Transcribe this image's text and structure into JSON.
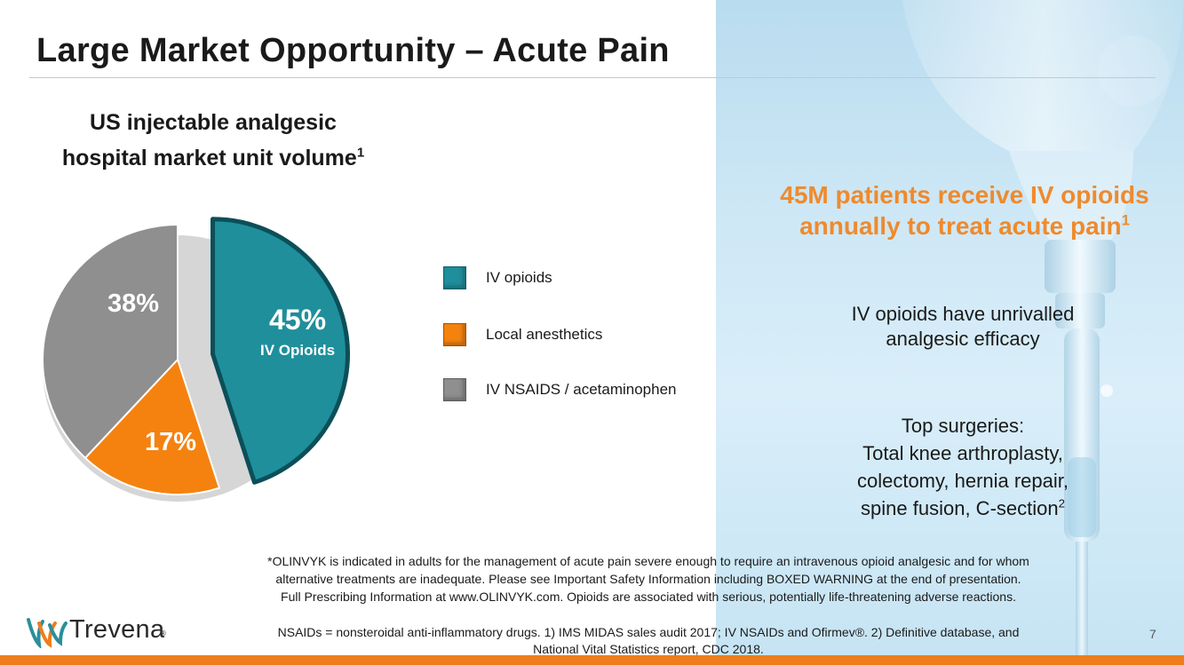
{
  "slide": {
    "title": "Large Market Opportunity – Acute Pain",
    "page_number": "7"
  },
  "chart_data": {
    "type": "pie",
    "title": "US injectable analgesic hospital market unit volume",
    "title_line1": "US injectable analgesic",
    "title_line2": "hospital market unit volume",
    "title_footnote": "1",
    "slices": [
      {
        "label": "IV opioids",
        "value": 45,
        "display": "45%",
        "sublabel": "IV Opioids",
        "color": "#1f8f9c",
        "exploded": true
      },
      {
        "label": "Local anesthetics",
        "value": 17,
        "display": "17%",
        "color": "#f5820f",
        "exploded": false
      },
      {
        "label": "IV NSAIDS / acetaminophen",
        "value": 38,
        "display": "38%",
        "color": "#8f8f8f",
        "exploded": false
      }
    ],
    "legend_position": "right"
  },
  "callout": {
    "line1": "45M patients receive IV opioids",
    "line2": "annually to treat acute pain",
    "footnote": "1"
  },
  "efficacy": {
    "line1": "IV opioids have unrivalled",
    "line2": "analgesic efficacy"
  },
  "surgeries": {
    "line1": "Top surgeries:",
    "line2": "Total knee arthroplasty,",
    "line3": "colectomy, hernia repair,",
    "line4": "spine fusion, C-section",
    "footnote": "2"
  },
  "footnote": {
    "line1": "*OLINVYK is indicated in adults for the management of acute pain severe enough to require an intravenous opioid analgesic and for whom",
    "line2": "alternative treatments are inadequate. Please see Important Safety Information including BOXED WARNING at the end of presentation.",
    "line3": "Full Prescribing Information at www.OLINVYK.com. Opioids are associated with serious, potentially life-threatening adverse reactions."
  },
  "abbreviations": {
    "line1": "NSAIDs = nonsteroidal anti-inflammatory drugs. 1) IMS MIDAS sales audit 2017; IV NSAIDs and Ofirmev®. 2) Definitive database, and",
    "line2": "National Vital Statistics report, CDC 2018."
  },
  "logo": {
    "name": "Trevena",
    "registered": "®"
  },
  "colors": {
    "accent_orange": "#f07d1b",
    "callout_orange": "#ef8a2c",
    "teal": "#1f8f9c"
  }
}
